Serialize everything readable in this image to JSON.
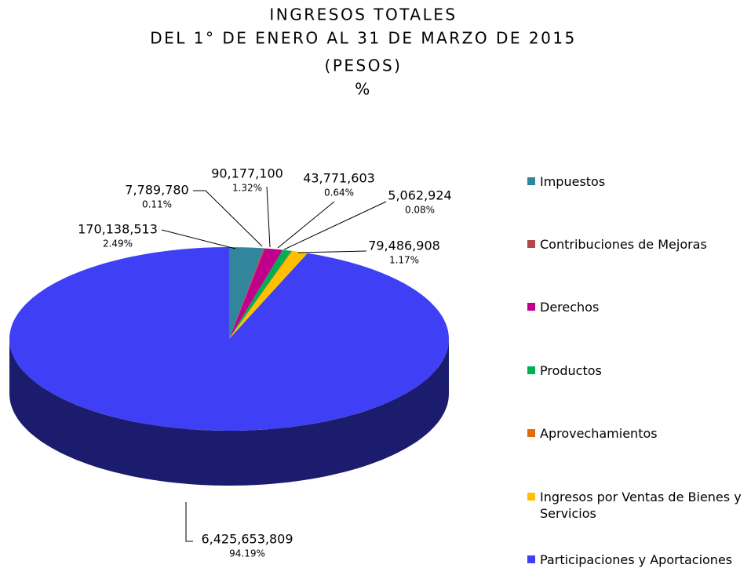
{
  "chart_data": {
    "type": "pie3d",
    "title": [
      "INGRESOS TOTALES",
      "DEL 1° DE ENERO AL 31 DE MARZO DE 2015",
      "(PESOS)",
      "%"
    ],
    "categories": [
      "Impuestos",
      "Contribuciones de Mejoras",
      "Derechos",
      "Productos",
      "Aprovechamientos",
      "Ingresos por Ventas de Bienes y Servicios",
      "Participaciones y Aportaciones"
    ],
    "values": [
      170138513,
      7789780,
      90177100,
      43771603,
      5062924,
      79486908,
      6425653809
    ],
    "value_labels": [
      "170,138,513",
      "7,789,780",
      "90,177,100",
      "43,771,603",
      "5,062,924",
      "79,486,908",
      "6,425,653,809"
    ],
    "percentages": [
      2.49,
      0.11,
      1.32,
      0.64,
      0.08,
      1.17,
      94.19
    ],
    "percentage_labels": [
      "2.49%",
      "0.11%",
      "1.32%",
      "0.64%",
      "0.08%",
      "1.17%",
      "94.19%"
    ],
    "colors": [
      "#31859c",
      "#b04a48",
      "#c0008c",
      "#00b050",
      "#e36c09",
      "#ffc000",
      "#3f3ff5"
    ],
    "legend": "right"
  }
}
